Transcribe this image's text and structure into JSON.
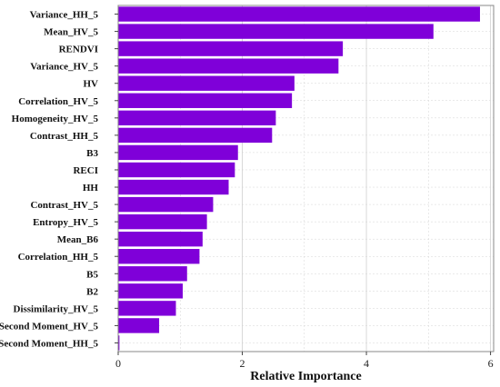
{
  "chart_data": {
    "type": "bar",
    "orientation": "horizontal",
    "categories": [
      "Variance_HH_5",
      "Mean_HV_5",
      "RENDVI",
      "Variance_HV_5",
      "HV",
      "Correlation_HV_5",
      "Homogeneity_HV_5",
      "Contrast_HH_5",
      "B3",
      "RECI",
      "HH",
      "Contrast_HV_5",
      "Entropy_HV_5",
      "Mean_B6",
      "Correlation_HH_5",
      "B5",
      "B2",
      "Dissimilarity_HV_5",
      "Second Moment_HV_5",
      "Second Moment_HH_5"
    ],
    "values": [
      5.83,
      5.08,
      3.62,
      3.55,
      2.84,
      2.8,
      2.54,
      2.48,
      1.93,
      1.88,
      1.78,
      1.53,
      1.43,
      1.36,
      1.31,
      1.11,
      1.04,
      0.93,
      0.66,
      0.02
    ],
    "xlabel": "Relative Importance",
    "ylabel": "",
    "xlim": [
      0,
      6.05
    ],
    "xticks": [
      "0",
      "2",
      "4",
      "6"
    ],
    "grid": true,
    "colors": {
      "bar": "#7f00d9",
      "grid": "#d4d4d4",
      "frame": "#888888"
    }
  }
}
